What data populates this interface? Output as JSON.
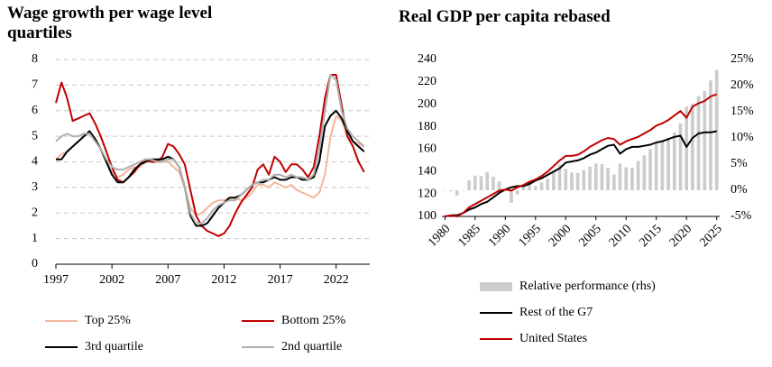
{
  "chart_data": [
    {
      "type": "line",
      "title": "Wage growth per wage level quartiles",
      "x": [
        1997,
        1997.5,
        1998,
        1998.5,
        1999,
        1999.5,
        2000,
        2000.5,
        2001,
        2001.5,
        2002,
        2002.5,
        2003,
        2003.5,
        2004,
        2004.5,
        2005,
        2005.5,
        2006,
        2006.5,
        2007,
        2007.5,
        2008,
        2008.5,
        2009,
        2009.5,
        2010,
        2010.5,
        2011,
        2011.5,
        2012,
        2012.5,
        2013,
        2013.5,
        2014,
        2014.5,
        2015,
        2015.5,
        2016,
        2016.5,
        2017,
        2017.5,
        2018,
        2018.5,
        2019,
        2019.5,
        2020,
        2020.5,
        2021,
        2021.5,
        2022,
        2022.5,
        2023,
        2023.5,
        2024,
        2024.5
      ],
      "xlim": [
        1997,
        2025
      ],
      "xticks": [
        1997,
        2002,
        2007,
        2012,
        2017,
        2022
      ],
      "ylim": [
        0,
        8
      ],
      "yticks": [
        0,
        1,
        2,
        3,
        4,
        5,
        6,
        7,
        8
      ],
      "grid": true,
      "series": [
        {
          "name": "Top 25%",
          "color": "#f4b69a",
          "values": [
            4.1,
            4.3,
            4.4,
            4.6,
            4.8,
            5.0,
            5.1,
            4.9,
            4.5,
            4.0,
            3.6,
            3.4,
            3.5,
            3.7,
            3.8,
            3.8,
            4.0,
            4.0,
            4.1,
            4.0,
            4.0,
            3.8,
            3.6,
            3.0,
            2.2,
            1.9,
            2.0,
            2.2,
            2.4,
            2.5,
            2.5,
            2.6,
            2.6,
            2.5,
            2.6,
            2.8,
            3.1,
            3.1,
            3.0,
            3.2,
            3.1,
            3.0,
            3.1,
            2.9,
            2.8,
            2.7,
            2.6,
            2.8,
            3.5,
            5.0,
            5.8,
            5.6,
            5.0,
            4.8,
            4.7,
            4.6
          ]
        },
        {
          "name": "Bottom 25%",
          "color": "#c00000",
          "values": [
            6.3,
            7.1,
            6.5,
            5.6,
            5.7,
            5.8,
            5.9,
            5.5,
            5.0,
            4.4,
            3.8,
            3.3,
            3.2,
            3.4,
            3.6,
            3.9,
            4.1,
            4.0,
            4.0,
            4.2,
            4.7,
            4.6,
            4.3,
            3.9,
            2.9,
            1.9,
            1.5,
            1.3,
            1.2,
            1.1,
            1.2,
            1.5,
            2.0,
            2.4,
            2.7,
            3.0,
            3.7,
            3.9,
            3.5,
            4.2,
            4.0,
            3.6,
            3.9,
            3.9,
            3.7,
            3.4,
            3.8,
            5.0,
            6.5,
            7.4,
            7.4,
            6.2,
            5.0,
            4.6,
            4.0,
            3.6
          ]
        },
        {
          "name": "3rd quartile",
          "color": "#000000",
          "values": [
            4.1,
            4.1,
            4.4,
            4.6,
            4.8,
            5.0,
            5.2,
            4.9,
            4.5,
            4.0,
            3.5,
            3.2,
            3.2,
            3.4,
            3.7,
            3.9,
            4.0,
            4.1,
            4.1,
            4.1,
            4.2,
            4.1,
            3.8,
            3.0,
            1.9,
            1.5,
            1.5,
            1.6,
            1.9,
            2.2,
            2.4,
            2.6,
            2.6,
            2.7,
            2.9,
            3.1,
            3.2,
            3.2,
            3.3,
            3.4,
            3.3,
            3.3,
            3.4,
            3.4,
            3.3,
            3.3,
            3.4,
            4.0,
            5.4,
            5.8,
            6.0,
            5.7,
            5.2,
            4.8,
            4.6,
            4.4
          ]
        },
        {
          "name": "2nd quartile",
          "color": "#b0b0b0",
          "values": [
            4.8,
            5.0,
            5.1,
            5.0,
            5.0,
            5.1,
            5.1,
            4.8,
            4.5,
            4.1,
            3.8,
            3.7,
            3.7,
            3.8,
            3.9,
            4.0,
            4.1,
            4.1,
            4.0,
            4.0,
            4.1,
            4.1,
            3.8,
            3.0,
            2.0,
            1.6,
            1.6,
            1.8,
            2.1,
            2.3,
            2.4,
            2.5,
            2.5,
            2.7,
            2.9,
            3.1,
            3.2,
            3.3,
            3.3,
            3.5,
            3.5,
            3.4,
            3.5,
            3.4,
            3.4,
            3.3,
            3.5,
            4.5,
            6.0,
            7.4,
            7.2,
            6.0,
            5.3,
            5.0,
            4.8,
            4.6
          ]
        }
      ]
    },
    {
      "type": "combo",
      "title": "Real GDP per capita rebased",
      "x": [
        1980,
        1981,
        1982,
        1983,
        1984,
        1985,
        1986,
        1987,
        1988,
        1989,
        1990,
        1991,
        1992,
        1993,
        1994,
        1995,
        1996,
        1997,
        1998,
        1999,
        2000,
        2001,
        2002,
        2003,
        2004,
        2005,
        2006,
        2007,
        2008,
        2009,
        2010,
        2011,
        2012,
        2013,
        2014,
        2015,
        2016,
        2017,
        2018,
        2019,
        2020,
        2021,
        2022,
        2023,
        2024,
        2025
      ],
      "xlim": [
        1979.5,
        2025.5
      ],
      "xticks": [
        1980,
        1985,
        1990,
        1995,
        2000,
        2005,
        2010,
        2015,
        2020,
        2025
      ],
      "ylim": [
        100,
        240
      ],
      "yticks": [
        100,
        120,
        140,
        160,
        180,
        200,
        220,
        240
      ],
      "y2lim": [
        -5,
        25
      ],
      "y2ticks": [
        {
          "value": -5,
          "label": "-5%"
        },
        {
          "value": 0,
          "label": "0%"
        },
        {
          "value": 5,
          "label": "5%"
        },
        {
          "value": 10,
          "label": "10%"
        },
        {
          "value": 15,
          "label": "15%"
        },
        {
          "value": 20,
          "label": "20%"
        },
        {
          "value": 25,
          "label": "25%"
        }
      ],
      "series": [
        {
          "name": "Relative performance (rhs)",
          "type": "bar",
          "axis": "y2",
          "color": "#cccccc",
          "values": [
            0,
            -0.2,
            -1,
            0,
            1.9,
            2.8,
            2.7,
            3.5,
            2.6,
            1.7,
            0,
            -2.4,
            -0.8,
            0.8,
            1.6,
            0.8,
            1.5,
            2.2,
            3.6,
            4.9,
            4.1,
            3.4,
            3.3,
            3.9,
            4.5,
            5.1,
            5,
            4.3,
            3.0,
            5.1,
            4.4,
            4.3,
            5.6,
            6.7,
            7.9,
            9.0,
            9.6,
            10,
            11.1,
            12.8,
            16,
            16.5,
            18,
            19,
            21,
            23
          ]
        },
        {
          "name": "Rest of the G7",
          "type": "line",
          "color": "#000000",
          "values": [
            100,
            101,
            101,
            103,
            106,
            108,
            111,
            113,
            117,
            121,
            124,
            126,
            127,
            127,
            129,
            132,
            134,
            137,
            140,
            143,
            148,
            149,
            150,
            152,
            155,
            157,
            160,
            163,
            164,
            156,
            160,
            162,
            162,
            163,
            164,
            166,
            167,
            169,
            171,
            172,
            162,
            170,
            174,
            175,
            175,
            176
          ]
        },
        {
          "name": "United States",
          "type": "line",
          "color": "#c00000",
          "values": [
            100,
            101,
            100,
            103,
            108,
            111,
            114,
            117,
            120,
            123,
            124,
            123,
            126,
            128,
            131,
            133,
            136,
            140,
            145,
            150,
            154,
            154,
            155,
            158,
            162,
            165,
            168,
            170,
            169,
            164,
            167,
            169,
            171,
            174,
            177,
            181,
            183,
            186,
            190,
            194,
            188,
            198,
            201,
            203,
            207,
            209
          ]
        }
      ]
    }
  ]
}
